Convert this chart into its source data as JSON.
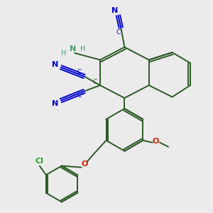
{
  "bg_color": "#ebebeb",
  "bond_color": "#2d5a27",
  "cn_color": "#0000cc",
  "nh2_color": "#4a9a6a",
  "o_color": "#cc2200",
  "cl_color": "#22aa22",
  "line_width": 1.4,
  "fig_size": [
    3.0,
    3.0
  ],
  "dpi": 100,
  "xlim": [
    0,
    10
  ],
  "ylim": [
    0,
    10
  ]
}
